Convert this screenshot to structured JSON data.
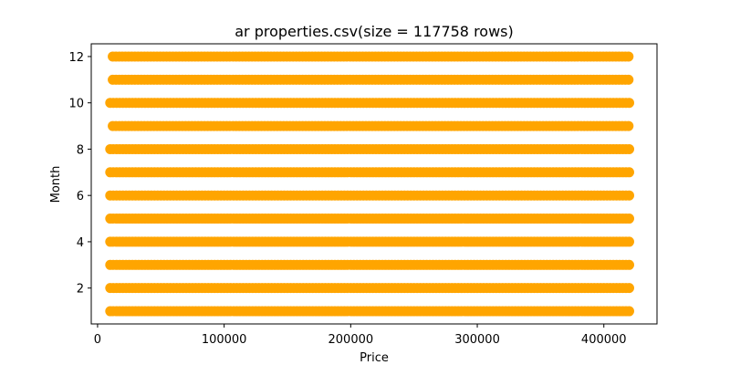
{
  "chart_data": {
    "type": "scatter",
    "title": "ar properties.csv(size = 117758 rows)",
    "xlabel": "Price",
    "ylabel": "Month",
    "xlim": [
      -5000,
      442000
    ],
    "ylim": [
      0.45,
      12.55
    ],
    "x_ticks": [
      0,
      100000,
      200000,
      300000,
      400000
    ],
    "y_ticks": [
      2,
      4,
      6,
      8,
      10,
      12
    ],
    "grid": false,
    "legend": "none",
    "marker_color": "#FFA500",
    "series": [
      {
        "values": [
          {
            "month": 1,
            "price_min": 10000,
            "price_max": 420000
          },
          {
            "month": 2,
            "price_min": 10000,
            "price_max": 420000
          },
          {
            "month": 3,
            "price_min": 10000,
            "price_max": 420000
          },
          {
            "month": 4,
            "price_min": 10000,
            "price_max": 420000
          },
          {
            "month": 5,
            "price_min": 10000,
            "price_max": 420000
          },
          {
            "month": 6,
            "price_min": 10000,
            "price_max": 420000
          },
          {
            "month": 7,
            "price_min": 10000,
            "price_max": 420000
          },
          {
            "month": 8,
            "price_min": 10000,
            "price_max": 420000
          },
          {
            "month": 9,
            "price_min": 12000,
            "price_max": 420000
          },
          {
            "month": 10,
            "price_min": 10000,
            "price_max": 420000
          },
          {
            "month": 11,
            "price_min": 12000,
            "price_max": 420000
          },
          {
            "month": 12,
            "price_min": 12000,
            "price_max": 421000
          }
        ]
      }
    ]
  }
}
